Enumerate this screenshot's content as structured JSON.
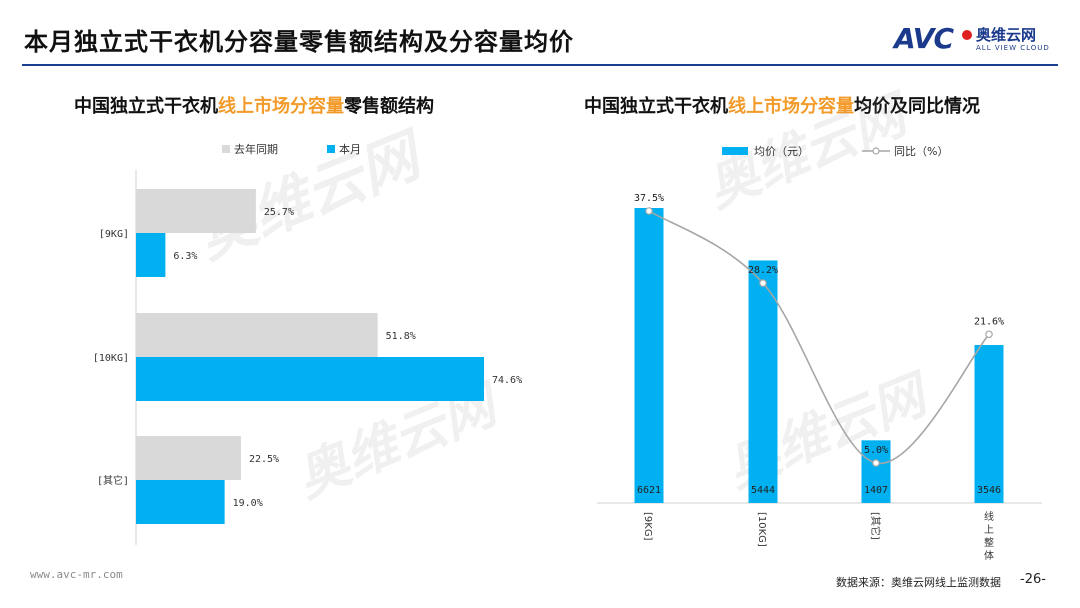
{
  "page": {
    "title": "本月独立式干衣机分容量零售额结构及分容量均价",
    "logo_cn": "奥维云网",
    "logo_en": "ALL VIEW CLOUD",
    "logo_mark": "AVC",
    "footer_url": "www.avc-mr.com",
    "footer_source": "数据来源：奥维云网线上监测数据",
    "page_number": "-26-",
    "watermark_text": "奥维云网",
    "watermark_sub": "ALL VIEW CLOUD",
    "accent_color": "#f39b2a",
    "brand_color": "#1a3e8e"
  },
  "left_panel": {
    "title_pre": "中国独立式干衣机",
    "title_hl": "线上市场分容量",
    "title_post": "零售额结构"
  },
  "right_panel": {
    "title_pre": "中国独立式干衣机",
    "title_hl": "线上市场分容量",
    "title_post": "均价及同比情况"
  },
  "chart_data": [
    {
      "type": "bar",
      "orientation": "horizontal",
      "categories": [
        "[9KG]",
        "[10KG]",
        "[其它]"
      ],
      "series": [
        {
          "name": "去年同期",
          "color": "#d9d9d9",
          "values": [
            25.7,
            51.8,
            22.5
          ],
          "labels": [
            "25.7%",
            "51.8%",
            "22.5%"
          ]
        },
        {
          "name": "本月",
          "color": "#00b0f0",
          "values": [
            6.3,
            74.6,
            19.0
          ],
          "labels": [
            "6.3%",
            "74.6%",
            "19.0%"
          ]
        }
      ],
      "unit": "%"
    },
    {
      "type": "bar",
      "categories": [
        "[9KG]",
        "[10KG]",
        "[其它]",
        "线上整体"
      ],
      "series": [
        {
          "name": "均价（元）",
          "type": "bar",
          "color": "#00b0f0",
          "values": [
            6621,
            5444,
            1407,
            3546
          ],
          "labels": [
            "6621",
            "5444",
            "1407",
            "3546"
          ]
        },
        {
          "name": "同比（%）",
          "type": "line",
          "color": "#a6a6a6",
          "values": [
            37.5,
            28.2,
            5.0,
            21.6
          ],
          "labels": [
            "37.5%",
            "28.2%",
            "5.0%",
            "21.6%"
          ]
        }
      ]
    }
  ]
}
